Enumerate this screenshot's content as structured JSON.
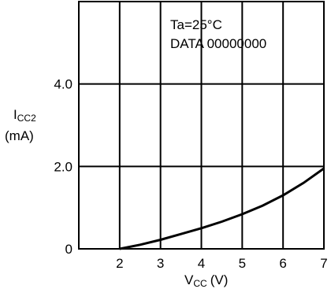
{
  "chart_data": {
    "type": "line",
    "annotation": [
      "Ta=25°C",
      "DATA  00000000"
    ],
    "xlabel": {
      "main": "V",
      "sub": "CC",
      "unit": "(V)"
    },
    "ylabel": {
      "main": "I",
      "sub": "CC2",
      "unit": "(mA)"
    },
    "xlim": [
      1,
      7
    ],
    "ylim": [
      0,
      6
    ],
    "x_tick_labels": [
      "2",
      "3",
      "4",
      "5",
      "6",
      "7"
    ],
    "x_tick_values": [
      2,
      3,
      4,
      5,
      6,
      7
    ],
    "y_tick_labels": [
      "0",
      "2.0",
      "4.0"
    ],
    "y_tick_values": [
      0,
      2,
      4
    ],
    "grid": true,
    "series": [
      {
        "x": [
          2.0,
          2.5,
          3.0,
          3.5,
          4.0,
          4.5,
          5.0,
          5.5,
          6.0,
          6.5,
          7.0
        ],
        "y": [
          0.0,
          0.1,
          0.22,
          0.36,
          0.5,
          0.66,
          0.84,
          1.05,
          1.3,
          1.6,
          1.95
        ]
      }
    ]
  }
}
